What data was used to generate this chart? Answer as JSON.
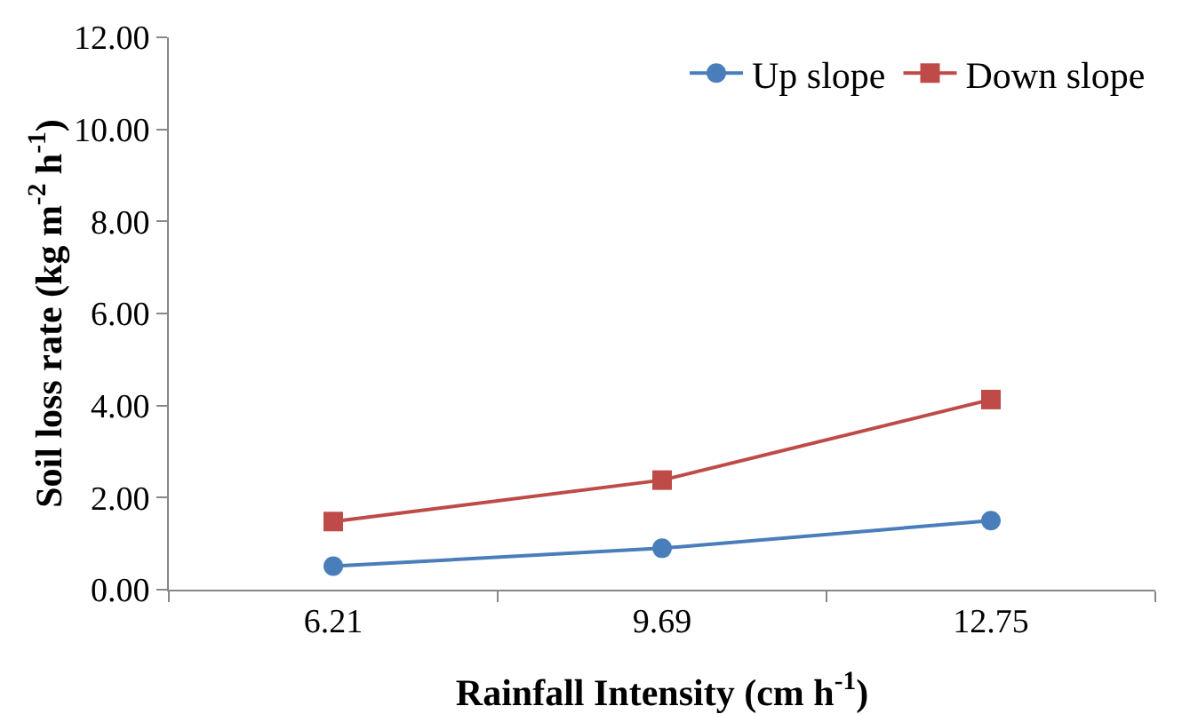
{
  "chart_data": {
    "type": "line",
    "xlabel": "Rainfall Intensity (cm h$^{-1}$)",
    "ylabel": "Soil loss rate (kg m$^{-2}$ h$^{-1}$)",
    "categories": [
      "6.21",
      "9.69",
      "12.75"
    ],
    "ylim": [
      0,
      12
    ],
    "yticks": [
      {
        "value": 0,
        "label": "0.00"
      },
      {
        "value": 2,
        "label": "2.00"
      },
      {
        "value": 4,
        "label": "4.00"
      },
      {
        "value": 6,
        "label": "6.00"
      },
      {
        "value": 8,
        "label": "8.00"
      },
      {
        "value": 10,
        "label": "10.00"
      },
      {
        "value": 12,
        "label": "12.00"
      }
    ],
    "grid": false,
    "legend": "top right",
    "series": [
      {
        "name": "Up slope",
        "color": "#4a7ebb",
        "marker": "circle",
        "values": [
          0.51,
          0.9,
          1.5
        ]
      },
      {
        "name": "Down slope",
        "color": "#be4b48",
        "marker": "square",
        "values": [
          1.48,
          2.38,
          4.13
        ]
      }
    ]
  }
}
